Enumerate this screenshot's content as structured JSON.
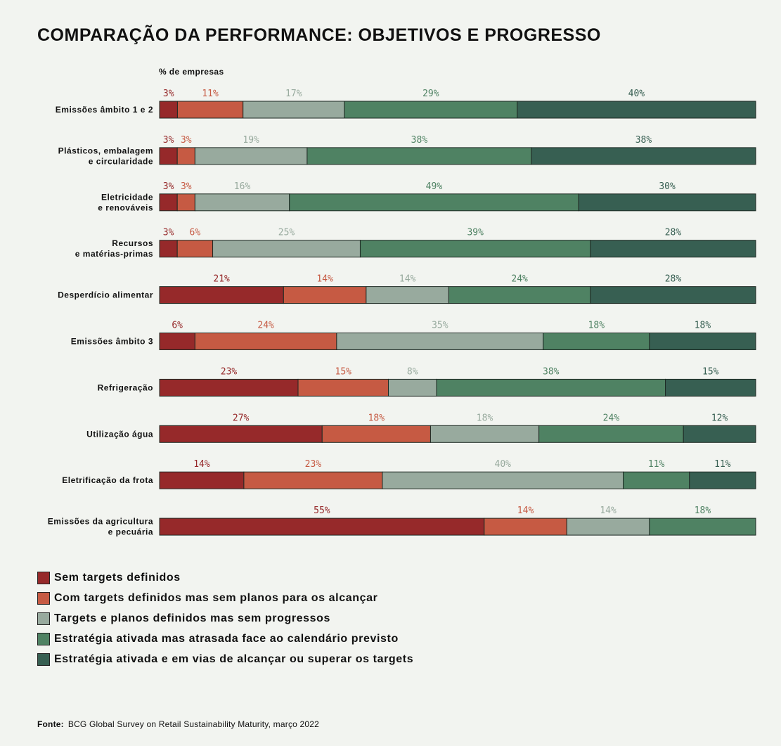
{
  "chart_data": {
    "type": "bar",
    "orientation": "horizontal",
    "stacked": true,
    "title": "COMPARAÇÃO DA PERFORMANCE: OBJETIVOS E PROGRESSO",
    "unit_label": "% de empresas",
    "categories": [
      "Emissões âmbito 1 e 2",
      "Plásticos, embalagem\ne circularidade",
      "Eletricidade\ne renováveis",
      "Recursos\ne matérias-primas",
      "Desperdício alimentar",
      "Emissões âmbito 3",
      "Refrigeração",
      "Utilização água",
      "Eletrificação da frota",
      "Emissões da agricultura\ne pecuária"
    ],
    "series": [
      {
        "name": "Sem targets definidos",
        "color": "#96292a",
        "values": [
          3,
          3,
          3,
          3,
          21,
          6,
          23,
          27,
          14,
          55
        ]
      },
      {
        "name": "Com targets definidos mas sem planos para os alcançar",
        "color": "#c65a43",
        "values": [
          11,
          3,
          3,
          6,
          14,
          24,
          15,
          18,
          23,
          14
        ]
      },
      {
        "name": "Targets e planos definidos mas sem progressos",
        "color": "#98aa9e",
        "values": [
          17,
          19,
          16,
          25,
          14,
          35,
          8,
          18,
          40,
          14
        ]
      },
      {
        "name": "Estratégia ativada mas atrasada face ao calendário previsto",
        "color": "#4f8263",
        "values": [
          29,
          38,
          49,
          39,
          24,
          18,
          38,
          24,
          11,
          18
        ]
      },
      {
        "name": "Estratégia ativada e em vias de alcançar ou superar os targets",
        "color": "#375f52",
        "values": [
          40,
          38,
          30,
          28,
          28,
          18,
          15,
          12,
          11,
          0
        ]
      }
    ],
    "label_colors": [
      "#96292a",
      "#c65a43",
      "#98aa9e",
      "#4f8263",
      "#375f52"
    ],
    "value_suffix": "%",
    "legend_position": "bottom-left",
    "grid": false
  },
  "source": {
    "label": "Fonte:",
    "text": "BCG Global Survey on Retail Sustainability Maturity, março 2022"
  }
}
